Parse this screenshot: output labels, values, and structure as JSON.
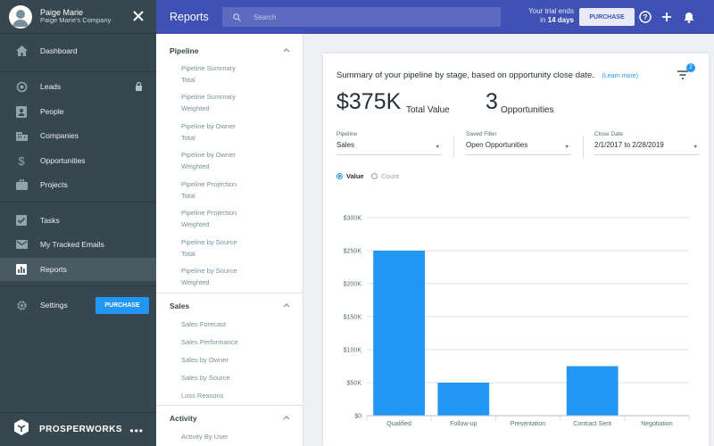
{
  "profile": {
    "name": "Paige Marie",
    "company": "Paige Marie's Company"
  },
  "sidebar": {
    "items": [
      {
        "label": "Dashboard",
        "icon": "home-icon"
      },
      {
        "label": "Leads",
        "icon": "target-icon",
        "locked": true
      },
      {
        "label": "People",
        "icon": "contact-card-icon"
      },
      {
        "label": "Companies",
        "icon": "building-icon"
      },
      {
        "label": "Opportunities",
        "icon": "dollar-icon"
      },
      {
        "label": "Projects",
        "icon": "briefcase-icon"
      },
      {
        "label": "Tasks",
        "icon": "checkbox-icon"
      },
      {
        "label": "My Tracked Emails",
        "icon": "mail-icon"
      },
      {
        "label": "Reports",
        "icon": "bar-chart-icon",
        "active": true
      },
      {
        "label": "Settings",
        "icon": "gear-icon"
      }
    ],
    "purchase_label": "PURCHASE",
    "brand": "PROSPERWORKS"
  },
  "topbar": {
    "title": "Reports",
    "search_placeholder": "Search",
    "trial_line1": "Your trial ends",
    "trial_in": "in",
    "trial_days": "14 days",
    "purchase_label": "PURCHASE"
  },
  "report_nav": {
    "sections": [
      {
        "title": "Pipeline",
        "items": [
          "Pipeline Summary Total",
          "Pipeline Summary Weighted",
          "Pipeline by Owner Total",
          "Pipeline by Owner Weighted",
          "Pipeline Projection Total",
          "Pipeline Projection Weighted",
          "Pipeline by Source Total",
          "Pipeline by Source Weighted"
        ]
      },
      {
        "title": "Sales",
        "items": [
          "Sales Forecast",
          "Sales Performance",
          "Sales by Owner",
          "Sales by Source",
          "Loss Reasons"
        ]
      },
      {
        "title": "Activity",
        "items": [
          "Activity By User"
        ]
      }
    ]
  },
  "main": {
    "summary": "Summary of your pipeline by stage, based on opportunity close date.",
    "learn_more": "(Learn more)",
    "filter_count": "2",
    "total_value": "$375K",
    "total_value_label": "Total Value",
    "opportunities_count": "3",
    "opportunities_label": "Opportunities",
    "filters": {
      "pipeline_label": "Pipeline",
      "pipeline_value": "Sales",
      "saved_filter_label": "Saved Filter",
      "saved_filter_value": "Open Opportunities",
      "close_date_label": "Close Date",
      "close_date_value": "2/1/2017 to 2/28/2019"
    },
    "toggle": {
      "value_label": "Value",
      "count_label": "Count",
      "selected": "Value"
    }
  },
  "colors": {
    "accent": "#2196f3",
    "topbar": "#3f51b5",
    "sidebar": "#37474f"
  },
  "chart_data": {
    "type": "bar",
    "categories": [
      "Qualified",
      "Follow-up",
      "Presentation",
      "Contract Sent",
      "Negotiation"
    ],
    "values": [
      250000,
      50000,
      0,
      75000,
      0
    ],
    "ylim": [
      0,
      300000
    ],
    "yticks": [
      0,
      50000,
      100000,
      150000,
      200000,
      250000,
      300000
    ],
    "ytick_labels": [
      "$0",
      "$50K",
      "$100K",
      "$150K",
      "$200K",
      "$250K",
      "$300K"
    ],
    "grid": true,
    "bar_color": "#2196f3"
  }
}
